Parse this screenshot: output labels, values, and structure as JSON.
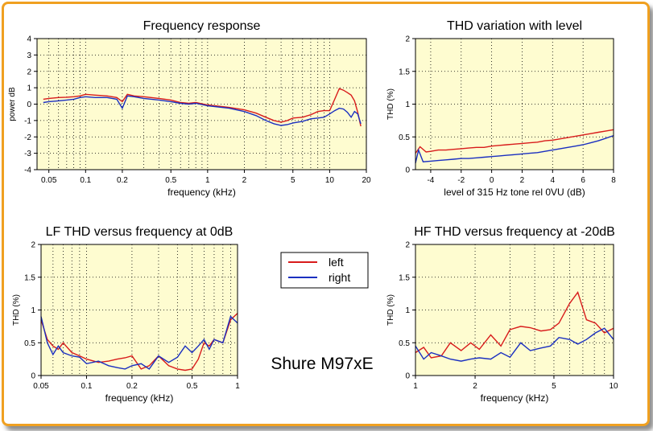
{
  "page_label": "Shure M97xE",
  "colors": {
    "left": "#d81b1b",
    "right": "#1a2fc0",
    "plot_bg": "#fefcd0",
    "frame": "#f0a020"
  },
  "legend": {
    "left": "left",
    "right": "right"
  },
  "chart_data": [
    {
      "id": "freq",
      "type": "line",
      "title": "Frequency response",
      "xlabel": "frequency (kHz)",
      "ylabel": "power dB",
      "xscale": "log",
      "xlim": [
        0.04,
        20
      ],
      "ylim": [
        -4,
        4
      ],
      "xticks": [
        0.05,
        0.1,
        0.2,
        0.5,
        1,
        2,
        5,
        10,
        20
      ],
      "xtick_labels": [
        "0.05",
        "0.1",
        "0.2",
        "0.5",
        "1",
        "2",
        "5",
        "10",
        "20"
      ],
      "yticks": [
        -4,
        -3,
        -2,
        -1,
        0,
        1,
        2,
        3,
        4
      ],
      "ytick_labels": [
        "-4",
        "-3",
        "-2",
        "-1",
        "0",
        "1",
        "2",
        "3",
        "4"
      ],
      "grid": true,
      "series": [
        {
          "key": "left",
          "x": [
            0.045,
            0.05,
            0.06,
            0.07,
            0.08,
            0.09,
            0.1,
            0.12,
            0.15,
            0.18,
            0.2,
            0.22,
            0.25,
            0.3,
            0.4,
            0.5,
            0.6,
            0.7,
            0.8,
            1,
            1.5,
            2,
            2.5,
            3,
            3.5,
            4,
            4.5,
            5,
            6,
            7,
            8,
            9,
            10,
            11,
            12,
            13,
            14,
            15,
            16,
            17,
            18
          ],
          "y": [
            0.3,
            0.35,
            0.4,
            0.42,
            0.45,
            0.5,
            0.6,
            0.55,
            0.5,
            0.4,
            0.15,
            0.6,
            0.5,
            0.45,
            0.35,
            0.25,
            0.1,
            0.05,
            0.1,
            -0.05,
            -0.2,
            -0.35,
            -0.55,
            -0.8,
            -1.0,
            -1.1,
            -1.0,
            -0.85,
            -0.8,
            -0.65,
            -0.45,
            -0.4,
            -0.4,
            0.3,
            0.95,
            0.85,
            0.7,
            0.55,
            0.2,
            -0.5,
            -1.35
          ]
        },
        {
          "key": "right",
          "x": [
            0.045,
            0.05,
            0.06,
            0.07,
            0.08,
            0.09,
            0.1,
            0.12,
            0.15,
            0.18,
            0.2,
            0.22,
            0.25,
            0.3,
            0.4,
            0.5,
            0.6,
            0.7,
            0.8,
            1,
            1.5,
            2,
            2.5,
            3,
            3.5,
            4,
            4.5,
            5,
            6,
            7,
            8,
            9,
            10,
            11,
            12,
            13,
            14,
            15,
            16,
            17,
            18
          ],
          "y": [
            0.1,
            0.15,
            0.2,
            0.25,
            0.3,
            0.4,
            0.45,
            0.4,
            0.4,
            0.3,
            -0.25,
            0.5,
            0.45,
            0.35,
            0.25,
            0.15,
            0.05,
            0.0,
            0.05,
            -0.1,
            -0.25,
            -0.45,
            -0.7,
            -1.0,
            -1.2,
            -1.3,
            -1.25,
            -1.15,
            -1.05,
            -0.9,
            -0.85,
            -0.8,
            -0.6,
            -0.4,
            -0.25,
            -0.3,
            -0.5,
            -0.8,
            -0.45,
            -0.6,
            -1.2
          ]
        }
      ]
    },
    {
      "id": "thdlevel",
      "type": "line",
      "title": "THD variation with level",
      "xlabel": "level of 315 Hz tone rel 0VU (dB)",
      "ylabel": "THD (%)",
      "xscale": "linear",
      "xlim": [
        -5,
        8
      ],
      "ylim": [
        0,
        2
      ],
      "xticks": [
        -4,
        -2,
        0,
        2,
        4,
        6,
        8
      ],
      "xtick_labels": [
        "-4",
        "-2",
        "0",
        "2",
        "4",
        "6",
        "8"
      ],
      "yticks": [
        0,
        0.5,
        1,
        1.5,
        2
      ],
      "ytick_labels": [
        "0",
        "0.5",
        "1",
        "1.5",
        "2"
      ],
      "grid": true,
      "series": [
        {
          "key": "left",
          "x": [
            -5,
            -4.7,
            -4.3,
            -4,
            -3.5,
            -3,
            -2.5,
            -2,
            -1.5,
            -1,
            -0.5,
            0,
            0.5,
            1,
            1.5,
            2,
            2.5,
            3,
            3.5,
            4,
            4.5,
            5,
            5.5,
            6,
            6.5,
            7,
            7.5,
            8
          ],
          "y": [
            0.25,
            0.35,
            0.27,
            0.28,
            0.3,
            0.3,
            0.31,
            0.32,
            0.33,
            0.34,
            0.34,
            0.36,
            0.37,
            0.38,
            0.39,
            0.4,
            0.41,
            0.42,
            0.44,
            0.45,
            0.47,
            0.49,
            0.51,
            0.53,
            0.55,
            0.57,
            0.59,
            0.61
          ]
        },
        {
          "key": "right",
          "x": [
            -5,
            -4.8,
            -4.5,
            -4,
            -3.5,
            -3,
            -2.5,
            -2,
            -1.5,
            -1,
            -0.5,
            0,
            0.5,
            1,
            1.5,
            2,
            2.5,
            3,
            3.5,
            4,
            4.5,
            5,
            5.5,
            6,
            6.5,
            7,
            7.5,
            8
          ],
          "y": [
            0.1,
            0.3,
            0.12,
            0.13,
            0.14,
            0.15,
            0.16,
            0.17,
            0.17,
            0.18,
            0.19,
            0.2,
            0.21,
            0.22,
            0.23,
            0.24,
            0.25,
            0.26,
            0.28,
            0.3,
            0.32,
            0.34,
            0.36,
            0.38,
            0.41,
            0.44,
            0.48,
            0.52
          ]
        }
      ]
    },
    {
      "id": "lfthd",
      "type": "line",
      "title": "LF THD versus frequency at 0dB",
      "xlabel": "frequency (kHz)",
      "ylabel": "THD (%)",
      "xscale": "log",
      "xlim": [
        0.05,
        1
      ],
      "ylim": [
        0,
        2
      ],
      "xticks": [
        0.05,
        0.1,
        0.2,
        0.5,
        1
      ],
      "xtick_labels": [
        "0.05",
        "0.1",
        "0.2",
        "0.5",
        "1"
      ],
      "yticks": [
        0,
        0.5,
        1,
        1.5,
        2
      ],
      "ytick_labels": [
        "0",
        "0.5",
        "1",
        "1.5",
        "2"
      ],
      "grid": true,
      "series": [
        {
          "key": "left",
          "x": [
            0.05,
            0.055,
            0.06,
            0.065,
            0.07,
            0.08,
            0.09,
            0.1,
            0.12,
            0.14,
            0.16,
            0.18,
            0.2,
            0.23,
            0.26,
            0.3,
            0.35,
            0.4,
            0.45,
            0.5,
            0.55,
            0.6,
            0.65,
            0.7,
            0.8,
            0.9,
            1.0
          ],
          "y": [
            0.85,
            0.55,
            0.45,
            0.4,
            0.5,
            0.35,
            0.3,
            0.25,
            0.2,
            0.22,
            0.25,
            0.27,
            0.3,
            0.1,
            0.15,
            0.3,
            0.15,
            0.1,
            0.08,
            0.1,
            0.25,
            0.5,
            0.45,
            0.55,
            0.5,
            0.85,
            0.95
          ]
        },
        {
          "key": "right",
          "x": [
            0.05,
            0.055,
            0.06,
            0.065,
            0.07,
            0.08,
            0.09,
            0.1,
            0.12,
            0.14,
            0.16,
            0.18,
            0.2,
            0.23,
            0.26,
            0.3,
            0.35,
            0.4,
            0.45,
            0.5,
            0.55,
            0.6,
            0.65,
            0.7,
            0.8,
            0.9,
            1.0
          ],
          "y": [
            0.9,
            0.5,
            0.32,
            0.45,
            0.35,
            0.3,
            0.28,
            0.18,
            0.22,
            0.15,
            0.12,
            0.1,
            0.15,
            0.18,
            0.1,
            0.3,
            0.2,
            0.28,
            0.45,
            0.35,
            0.45,
            0.55,
            0.4,
            0.55,
            0.5,
            0.9,
            0.8
          ]
        }
      ]
    },
    {
      "id": "hfthd",
      "type": "line",
      "title": "HF THD versus frequency at -20dB",
      "xlabel": "frequency (kHz)",
      "ylabel": "THD (%)",
      "xscale": "log",
      "xlim": [
        1,
        10
      ],
      "ylim": [
        0,
        2
      ],
      "xticks": [
        1,
        2,
        5,
        10
      ],
      "xtick_labels": [
        "1",
        "2",
        "5",
        "10"
      ],
      "yticks": [
        0,
        0.5,
        1,
        1.5,
        2
      ],
      "ytick_labels": [
        "0",
        "0.5",
        "1",
        "1.5",
        "2"
      ],
      "grid": true,
      "series": [
        {
          "key": "left",
          "x": [
            1,
            1.1,
            1.2,
            1.35,
            1.5,
            1.7,
            1.9,
            2.1,
            2.4,
            2.7,
            3.0,
            3.4,
            3.8,
            4.3,
            4.8,
            5.3,
            6.0,
            6.6,
            7.3,
            8.1,
            9.0,
            10
          ],
          "y": [
            0.35,
            0.43,
            0.27,
            0.3,
            0.5,
            0.38,
            0.5,
            0.4,
            0.62,
            0.45,
            0.7,
            0.75,
            0.73,
            0.68,
            0.7,
            0.8,
            1.1,
            1.27,
            0.85,
            0.8,
            0.65,
            0.72
          ]
        },
        {
          "key": "right",
          "x": [
            1,
            1.1,
            1.2,
            1.35,
            1.5,
            1.7,
            1.9,
            2.1,
            2.4,
            2.7,
            3.0,
            3.4,
            3.8,
            4.3,
            4.8,
            5.3,
            6.0,
            6.6,
            7.3,
            8.1,
            9.0,
            10
          ],
          "y": [
            0.45,
            0.25,
            0.35,
            0.3,
            0.25,
            0.22,
            0.25,
            0.27,
            0.25,
            0.35,
            0.28,
            0.5,
            0.38,
            0.42,
            0.45,
            0.58,
            0.55,
            0.48,
            0.55,
            0.65,
            0.72,
            0.55
          ]
        }
      ]
    }
  ]
}
